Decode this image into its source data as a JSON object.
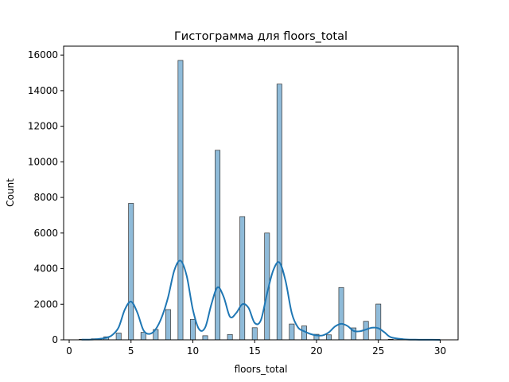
{
  "chart_data": {
    "type": "bar",
    "title": "Гистограмма для floors_total",
    "xlabel": "floors_total",
    "ylabel": "Count",
    "xlim": [
      -0.45,
      31.45
    ],
    "ylim": [
      0,
      16500
    ],
    "xticks": [
      0,
      5,
      10,
      15,
      20,
      25,
      30
    ],
    "yticks": [
      0,
      2000,
      4000,
      6000,
      8000,
      10000,
      12000,
      14000,
      16000
    ],
    "grid": false,
    "bar_color": "#1f77b4",
    "bar_alpha": 0.5,
    "bar_edge_color": "#333333",
    "kde_color": "#1f77b4",
    "bar_width": 0.4,
    "bars": [
      {
        "x": 1,
        "count": 30
      },
      {
        "x": 2,
        "count": 60
      },
      {
        "x": 3,
        "count": 170
      },
      {
        "x": 4,
        "count": 380
      },
      {
        "x": 5,
        "count": 7670
      },
      {
        "x": 6,
        "count": 420
      },
      {
        "x": 7,
        "count": 580
      },
      {
        "x": 8,
        "count": 1700
      },
      {
        "x": 9,
        "count": 15700
      },
      {
        "x": 10,
        "count": 1150
      },
      {
        "x": 11,
        "count": 230
      },
      {
        "x": 12,
        "count": 10650
      },
      {
        "x": 13,
        "count": 300
      },
      {
        "x": 14,
        "count": 6920
      },
      {
        "x": 15,
        "count": 680
      },
      {
        "x": 16,
        "count": 6000
      },
      {
        "x": 17,
        "count": 14370
      },
      {
        "x": 18,
        "count": 890
      },
      {
        "x": 19,
        "count": 780
      },
      {
        "x": 20,
        "count": 310
      },
      {
        "x": 21,
        "count": 280
      },
      {
        "x": 22,
        "count": 2940
      },
      {
        "x": 23,
        "count": 670
      },
      {
        "x": 24,
        "count": 1040
      },
      {
        "x": 25,
        "count": 2010
      },
      {
        "x": 26,
        "count": 30
      },
      {
        "x": 27,
        "count": 15
      },
      {
        "x": 28,
        "count": 15
      },
      {
        "x": 29,
        "count": 10
      },
      {
        "x": 30,
        "count": 5
      }
    ],
    "kde_curve": [
      [
        1,
        10
      ],
      [
        2,
        20
      ],
      [
        3,
        120
      ],
      [
        3.5,
        280
      ],
      [
        4,
        700
      ],
      [
        4.5,
        1700
      ],
      [
        5,
        2150
      ],
      [
        5.5,
        1550
      ],
      [
        6,
        550
      ],
      [
        6.5,
        330
      ],
      [
        7,
        600
      ],
      [
        7.5,
        1300
      ],
      [
        8,
        2400
      ],
      [
        8.5,
        3900
      ],
      [
        9,
        4450
      ],
      [
        9.5,
        3600
      ],
      [
        10,
        1700
      ],
      [
        10.5,
        600
      ],
      [
        11,
        700
      ],
      [
        11.5,
        2000
      ],
      [
        12,
        2950
      ],
      [
        12.5,
        2400
      ],
      [
        13,
        1300
      ],
      [
        13.5,
        1500
      ],
      [
        14,
        2000
      ],
      [
        14.5,
        1800
      ],
      [
        15,
        950
      ],
      [
        15.5,
        1100
      ],
      [
        16,
        2600
      ],
      [
        16.5,
        3900
      ],
      [
        17,
        4350
      ],
      [
        17.5,
        3300
      ],
      [
        18,
        1500
      ],
      [
        18.5,
        700
      ],
      [
        19,
        480
      ],
      [
        19.5,
        330
      ],
      [
        20,
        250
      ],
      [
        20.5,
        250
      ],
      [
        21,
        420
      ],
      [
        21.5,
        750
      ],
      [
        22,
        900
      ],
      [
        22.5,
        780
      ],
      [
        23,
        500
      ],
      [
        23.5,
        480
      ],
      [
        24,
        580
      ],
      [
        24.5,
        680
      ],
      [
        25,
        650
      ],
      [
        25.5,
        420
      ],
      [
        26,
        150
      ],
      [
        27,
        35
      ],
      [
        28,
        10
      ],
      [
        29,
        5
      ],
      [
        30,
        2
      ]
    ]
  }
}
